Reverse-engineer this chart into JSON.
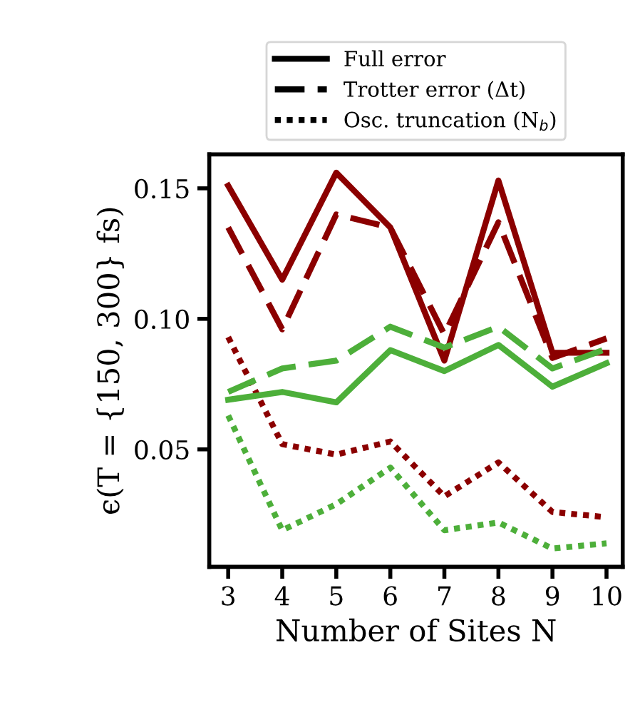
{
  "chart_data": {
    "type": "line",
    "xlabel": "Number of Sites N",
    "ylabel": "ϵ(T = {150, 300} fs)",
    "x": [
      3,
      4,
      5,
      6,
      7,
      8,
      9,
      10
    ],
    "xlim": [
      2.65,
      10.3
    ],
    "xticks": [
      3,
      4,
      5,
      6,
      7,
      8,
      9,
      10
    ],
    "ylim": [
      0.005,
      0.163
    ],
    "yticks": [
      0.05,
      {
        "value": 0.1,
        "label": "0.10"
      },
      0.15
    ],
    "grid": false,
    "marker": "none",
    "annotations": [
      "Full error",
      "Trotter error (Δt)",
      "Osc. truncation (N$_{b}$)"
    ],
    "series": [
      {
        "color": "#8b0000",
        "line_style": "solid",
        "values": [
          0.151,
          0.115,
          0.156,
          0.135,
          0.084,
          0.153,
          0.087,
          0.087
        ]
      },
      {
        "color": "#8b0000",
        "line_style": "dashed",
        "values": [
          0.135,
          0.096,
          0.14,
          0.135,
          0.094,
          0.137,
          0.085,
          0.0925
        ]
      },
      {
        "color": "#8b0000",
        "line_style": "dotted",
        "values": [
          0.093,
          0.052,
          0.048,
          0.053,
          0.032,
          0.045,
          0.026,
          0.024
        ]
      },
      {
        "color": "#4daf3a",
        "line_style": "solid",
        "values": [
          0.069,
          0.072,
          0.068,
          0.088,
          0.08,
          0.09,
          0.074,
          0.083
        ]
      },
      {
        "color": "#4daf3a",
        "line_style": "dashed",
        "values": [
          0.072,
          0.081,
          0.084,
          0.097,
          0.089,
          0.097,
          0.081,
          0.0885
        ]
      },
      {
        "color": "#4daf3a",
        "line_style": "dotted",
        "values": [
          0.063,
          0.019,
          0.029,
          0.043,
          0.019,
          0.022,
          0.012,
          0.014
        ]
      }
    ]
  }
}
